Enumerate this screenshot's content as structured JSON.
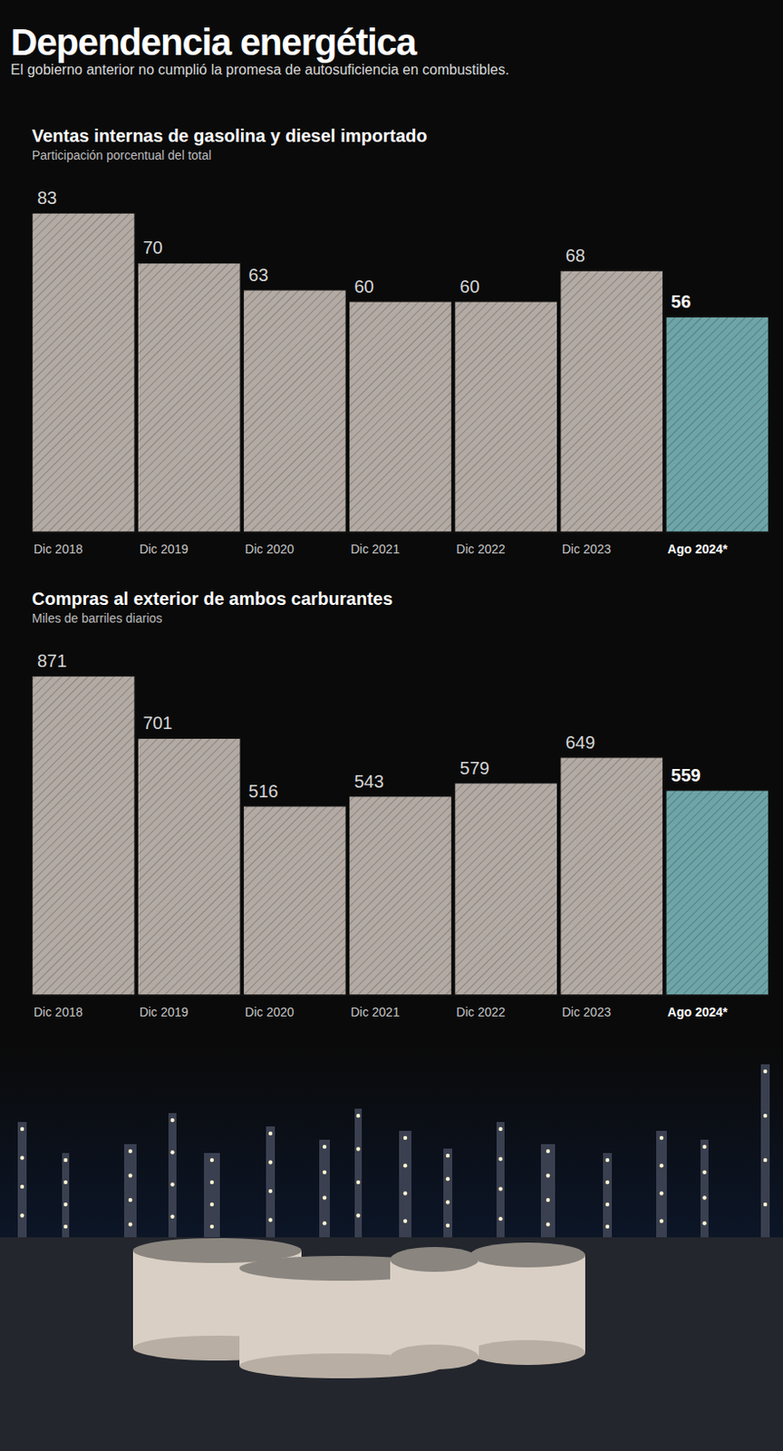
{
  "header": {
    "title": "Dependencia energética",
    "subtitle": "El gobierno anterior no cumplió la promesa de autosuficiencia en combustibles."
  },
  "chart_data": [
    {
      "type": "bar",
      "title": "Ventas internas de gasolina y diesel importado",
      "subtitle": "Participación porcentual del total",
      "categories": [
        "Dic 2018",
        "Dic 2019",
        "Dic 2020",
        "Dic 2021",
        "Dic 2022",
        "Dic 2023",
        "Ago 2024*"
      ],
      "values": [
        83,
        70,
        63,
        60,
        60,
        68,
        56
      ],
      "colors": [
        "#b3aaa4",
        "#b3aaa4",
        "#b3aaa4",
        "#b3aaa4",
        "#b3aaa4",
        "#b3aaa4",
        "#6ea5a8"
      ],
      "ylim": [
        0,
        83
      ],
      "data_labels": true,
      "tick_labels": "x",
      "grid": false
    },
    {
      "type": "bar",
      "title": "Compras al exterior de ambos carburantes",
      "subtitle": "Miles de barriles diarios",
      "categories": [
        "Dic 2018",
        "Dic 2019",
        "Dic 2020",
        "Dic 2021",
        "Dic 2022",
        "Dic 2023",
        "Ago 2024*"
      ],
      "values": [
        871,
        701,
        516,
        543,
        579,
        649,
        559
      ],
      "colors": [
        "#b3aaa4",
        "#b3aaa4",
        "#b3aaa4",
        "#b3aaa4",
        "#b3aaa4",
        "#b3aaa4",
        "#6ea5a8"
      ],
      "ylim": [
        0,
        871
      ],
      "data_labels": true,
      "tick_labels": "x",
      "grid": false
    }
  ]
}
